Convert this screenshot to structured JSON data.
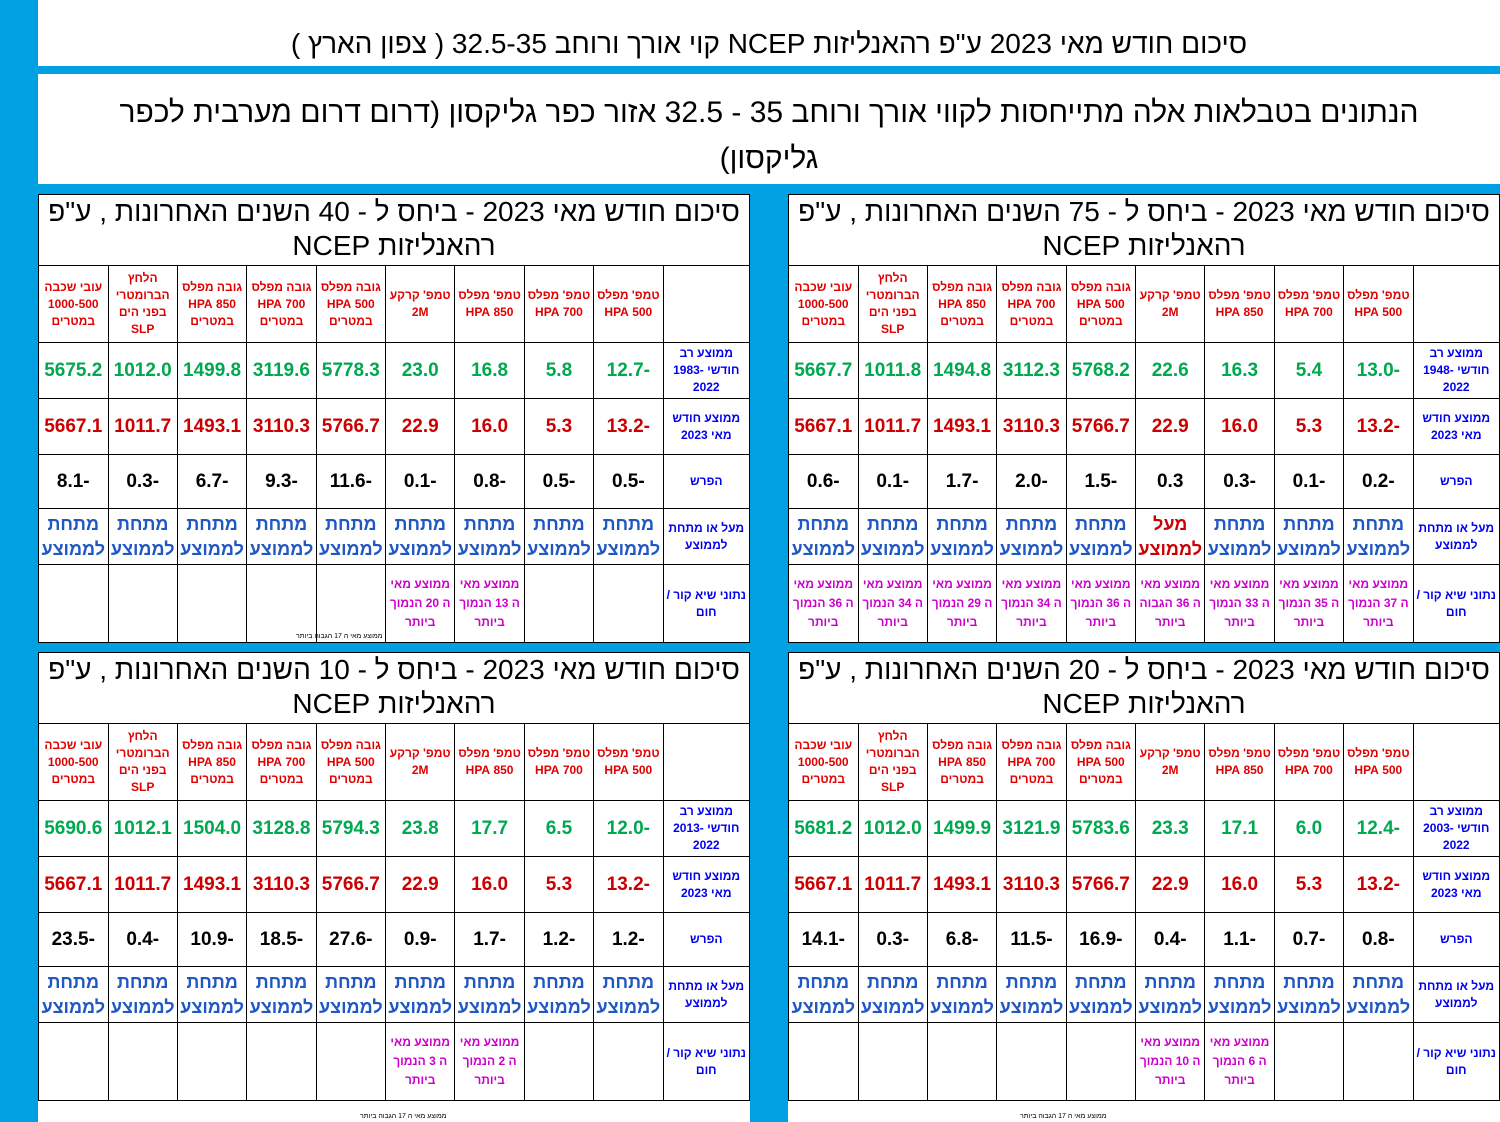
{
  "title": "סיכום חודש מאי 2023 ע\"פ רהאנליזות NCEP קוי אורך ורוחב 32.5-35 ( צפון הארץ )",
  "description": "הנתונים בטבלאות אלה מתייחסות לקווי אורך ורוחב 35 - 32.5 אזור כפר גליקסון (דרום דרום מערבית לכפר גליקסון)",
  "columns": [
    "טמפ' מפלס 500 HPA",
    "טמפ' מפלס 700 HPA",
    "טמפ' מפלס 850 HPA",
    "טמפ' קרקע 2M",
    "גובה מפלס 500 HPA במטרים",
    "גובה מפלס 700 HPA במטרים",
    "גובה מפלס 850 HPA במטרים",
    "הלחץ הברומטרי בפני הים SLP",
    "עובי שכבה 1000-500 במטרים"
  ],
  "row_labels": {
    "current": "ממוצע חודש מאי 2023",
    "diff": "הפרש",
    "above_below": "מעל או מתחת לממוצע",
    "records": "נתוני שיא קור / חום"
  },
  "below": "מתחת לממוצע",
  "above": "מעל לממוצע",
  "current_values": [
    "-13.2",
    "5.3",
    "16.0",
    "22.9",
    "5766.7",
    "3110.3",
    "1493.1",
    "1011.7",
    "5667.1"
  ],
  "panels": {
    "p75": {
      "title": "סיכום חודש מאי 2023 - ביחס ל - 75 השנים האחרונות , ע\"פ רהאנליזות NCEP",
      "avg_label": "ממוצע רב חודשי 1948-2022",
      "avg": [
        "-13.0",
        "5.4",
        "16.3",
        "22.6",
        "5768.2",
        "3112.3",
        "1494.8",
        "1011.8",
        "5667.7"
      ],
      "diff": [
        "-0.2",
        "-0.1",
        "-0.3",
        "0.3",
        "-1.5",
        "-2.0",
        "-1.7",
        "-0.1",
        "-0.6"
      ],
      "notes": [
        "ממוצע מאי ה 37 הנמוך ביותר",
        "ממוצע מאי ה 35 הנמוך ביותר",
        "ממוצע מאי ה 33 הנמוך ביותר",
        "ממוצע מאי ה 36 הגבוה ביותר",
        "ממוצע מאי ה 36 הנמוך ביותר",
        "ממוצע מאי ה 34 הנמוך ביותר",
        "ממוצע מאי ה 29 הנמוך ביותר",
        "ממוצע מאי ה 34 הנמוך ביותר",
        "ממוצע מאי ה 36 הנמוך ביותר"
      ]
    },
    "p40": {
      "title": "סיכום חודש מאי 2023 - ביחס ל - 40 השנים האחרונות , ע\"פ רהאנליזות NCEP",
      "avg_label": "ממוצע רב חודשי 1983-2022",
      "avg": [
        "-12.7",
        "5.8",
        "16.8",
        "23.0",
        "5778.3",
        "3119.6",
        "1499.8",
        "1012.0",
        "5675.2"
      ],
      "diff": [
        "-0.5",
        "-0.5",
        "-0.8",
        "-0.1",
        "-11.6",
        "-9.3",
        "-6.7",
        "-0.3",
        "-8.1"
      ],
      "notes": [
        "",
        "",
        "ממוצע מאי ה 13 הנמוך ביותר",
        "ממוצע מאי ה 20 הנמוך ביותר",
        "",
        "",
        "",
        "",
        ""
      ],
      "tiny": "ממוצע מאי ה 17 הגבוה ביותר"
    },
    "p20": {
      "title": "סיכום חודש מאי 2023 - ביחס ל - 20 השנים האחרונות , ע\"פ רהאנליזות NCEP",
      "avg_label": "ממוצע רב חודשי 2003-2022",
      "avg": [
        "-12.4",
        "6.0",
        "17.1",
        "23.3",
        "5783.6",
        "3121.9",
        "1499.9",
        "1012.0",
        "5681.2"
      ],
      "diff": [
        "-0.8",
        "-0.7",
        "-1.1",
        "-0.4",
        "-16.9",
        "-11.5",
        "-6.8",
        "-0.3",
        "-14.1"
      ],
      "notes": [
        "",
        "",
        "ממוצע מאי ה 6 הנמוך ביותר",
        "ממוצע מאי ה 10 הנמוך ביותר",
        "",
        "",
        "",
        "",
        ""
      ],
      "tiny": "ממוצע מאי ה 17 הגבוה ביותר"
    },
    "p10": {
      "title": "סיכום חודש מאי 2023 - ביחס ל - 10 השנים האחרונות , ע\"פ רהאנליזות NCEP",
      "avg_label": "ממוצע רב חודשי 2013-2022",
      "avg": [
        "-12.0",
        "6.5",
        "17.7",
        "23.8",
        "5794.3",
        "3128.8",
        "1504.0",
        "1012.1",
        "5690.6"
      ],
      "diff": [
        "-1.2",
        "-1.2",
        "-1.7",
        "-0.9",
        "-27.6",
        "-18.5",
        "-10.9",
        "-0.4",
        "-23.5"
      ],
      "notes": [
        "",
        "",
        "ממוצע מאי ה 2 הנמוך ביותר",
        "ממוצע מאי ה 3 הנמוך ביותר",
        "",
        "",
        "",
        "",
        ""
      ],
      "tiny": "ממוצע מאי ה 17 הגבוה ביותר"
    }
  },
  "colors": {
    "frame": "#00a0e3",
    "green": "#00a850",
    "red": "#cc0000",
    "blue": "#1f57c3",
    "magenta": "#cc00cc"
  }
}
